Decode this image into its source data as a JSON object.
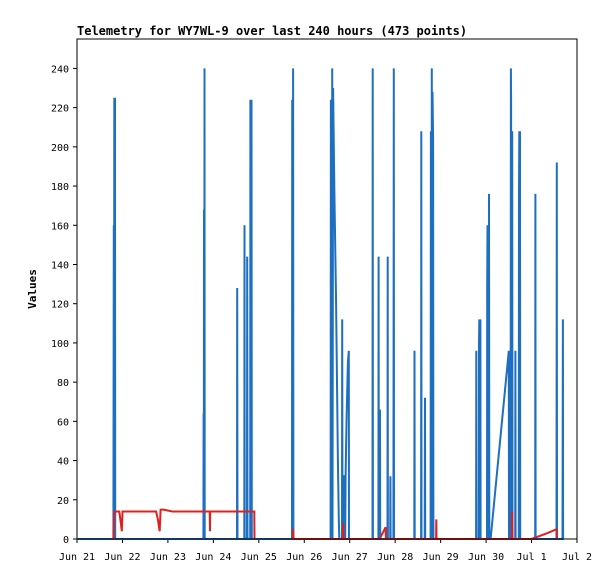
{
  "chart_data": {
    "type": "line",
    "title": "Telemetry for WY7WL-9 over last 240 hours (473 points)",
    "xlabel": "",
    "ylabel": "Values",
    "ylim": [
      0,
      255
    ],
    "xlim": [
      "Jun 21",
      "Jul 2"
    ],
    "yticks": [
      0,
      20,
      40,
      60,
      80,
      100,
      120,
      140,
      160,
      180,
      200,
      220,
      240
    ],
    "xticks": [
      "Jun 21",
      "Jun 22",
      "Jun 23",
      "Jun 24",
      "Jun 25",
      "Jun 26",
      "Jun 27",
      "Jun 28",
      "Jun 29",
      "Jun 30",
      "Jul 1",
      "Jul 2"
    ],
    "grid": false,
    "legend": "none",
    "colors": {
      "blue": "#1f6fc0",
      "red": "#e02020",
      "black": "#000000"
    },
    "series": [
      {
        "color": "#1f6fc0",
        "points": [
          [
            0.0,
            0
          ],
          [
            0.8,
            0
          ],
          [
            0.81,
            160
          ],
          [
            0.815,
            0
          ],
          [
            0.82,
            225
          ],
          [
            0.825,
            0
          ],
          [
            0.835,
            225
          ],
          [
            0.84,
            0
          ],
          [
            1.0,
            0
          ],
          [
            2.78,
            0
          ],
          [
            2.785,
            64
          ],
          [
            2.79,
            0
          ],
          [
            2.795,
            168
          ],
          [
            2.8,
            0
          ],
          [
            2.805,
            240
          ],
          [
            2.81,
            0
          ],
          [
            3.0,
            0
          ],
          [
            3.52,
            0
          ],
          [
            3.525,
            128
          ],
          [
            3.53,
            0
          ],
          [
            3.68,
            0
          ],
          [
            3.685,
            160
          ],
          [
            3.69,
            0
          ],
          [
            3.74,
            0
          ],
          [
            3.745,
            144
          ],
          [
            3.75,
            0
          ],
          [
            3.81,
            0
          ],
          [
            3.815,
            224
          ],
          [
            3.82,
            0
          ],
          [
            3.835,
            0
          ],
          [
            3.84,
            224
          ],
          [
            3.845,
            0
          ],
          [
            4.0,
            0
          ],
          [
            4.73,
            0
          ],
          [
            4.735,
            224
          ],
          [
            4.74,
            0
          ],
          [
            4.75,
            0
          ],
          [
            4.755,
            240
          ],
          [
            4.76,
            0
          ],
          [
            5.0,
            0
          ],
          [
            5.58,
            0
          ],
          [
            5.585,
            224
          ],
          [
            5.59,
            0
          ],
          [
            5.61,
            0
          ],
          [
            5.615,
            240
          ],
          [
            5.62,
            0
          ],
          [
            5.635,
            230
          ],
          [
            5.66,
            180
          ],
          [
            5.68,
            150
          ],
          [
            5.7,
            120
          ],
          [
            5.72,
            80
          ],
          [
            5.74,
            40
          ],
          [
            5.76,
            10
          ],
          [
            5.77,
            0
          ],
          [
            5.83,
            0
          ],
          [
            5.835,
            112
          ],
          [
            5.84,
            0
          ],
          [
            5.85,
            0
          ],
          [
            5.855,
            32
          ],
          [
            5.89,
            32
          ],
          [
            5.895,
            0
          ],
          [
            5.9,
            0
          ],
          [
            5.91,
            32
          ],
          [
            5.93,
            60
          ],
          [
            5.96,
            90
          ],
          [
            5.98,
            96
          ],
          [
            5.985,
            0
          ],
          [
            6.0,
            0
          ],
          [
            6.5,
            0
          ],
          [
            6.505,
            240
          ],
          [
            6.51,
            0
          ],
          [
            6.63,
            0
          ],
          [
            6.635,
            144
          ],
          [
            6.64,
            0
          ],
          [
            6.66,
            0
          ],
          [
            6.665,
            66
          ],
          [
            6.67,
            0
          ],
          [
            6.83,
            0
          ],
          [
            6.835,
            144
          ],
          [
            6.84,
            0
          ],
          [
            6.89,
            0
          ],
          [
            6.895,
            32
          ],
          [
            6.9,
            0
          ],
          [
            6.96,
            0
          ],
          [
            6.965,
            112
          ],
          [
            6.97,
            240
          ],
          [
            6.975,
            0
          ],
          [
            7.0,
            0
          ],
          [
            7.42,
            0
          ],
          [
            7.425,
            96
          ],
          [
            7.43,
            0
          ],
          [
            7.57,
            0
          ],
          [
            7.575,
            208
          ],
          [
            7.58,
            0
          ],
          [
            7.65,
            0
          ],
          [
            7.655,
            72
          ],
          [
            7.66,
            0
          ],
          [
            7.78,
            0
          ],
          [
            7.785,
            208
          ],
          [
            7.79,
            0
          ],
          [
            7.8,
            0
          ],
          [
            7.805,
            240
          ],
          [
            7.81,
            0
          ],
          [
            7.82,
            228
          ],
          [
            7.835,
            204
          ],
          [
            7.84,
            0
          ],
          [
            8.0,
            0
          ],
          [
            8.78,
            0
          ],
          [
            8.785,
            96
          ],
          [
            8.79,
            0
          ],
          [
            8.84,
            0
          ],
          [
            8.845,
            100
          ],
          [
            8.85,
            112
          ],
          [
            8.855,
            0
          ],
          [
            8.87,
            0
          ],
          [
            8.875,
            112
          ],
          [
            8.88,
            0
          ],
          [
            9.0,
            0
          ],
          [
            9.02,
            0
          ],
          [
            9.025,
            128
          ],
          [
            9.03,
            160
          ],
          [
            9.035,
            0
          ],
          [
            9.06,
            0
          ],
          [
            9.065,
            176
          ],
          [
            9.07,
            0
          ],
          [
            9.1,
            0
          ],
          [
            9.5,
            96
          ],
          [
            9.505,
            0
          ],
          [
            9.54,
            0
          ],
          [
            9.545,
            240
          ],
          [
            9.55,
            224
          ],
          [
            9.555,
            0
          ],
          [
            9.57,
            0
          ],
          [
            9.575,
            208
          ],
          [
            9.58,
            0
          ],
          [
            9.64,
            0
          ],
          [
            9.645,
            96
          ],
          [
            9.65,
            0
          ],
          [
            9.72,
            0
          ],
          [
            9.725,
            176
          ],
          [
            9.73,
            208
          ],
          [
            9.735,
            0
          ],
          [
            9.74,
            0
          ],
          [
            9.745,
            208
          ],
          [
            9.75,
            0
          ],
          [
            10.0,
            0
          ],
          [
            10.08,
            0
          ],
          [
            10.085,
            176
          ],
          [
            10.09,
            0
          ],
          [
            10.55,
            0
          ],
          [
            10.555,
            192
          ],
          [
            10.56,
            0
          ],
          [
            10.68,
            0
          ],
          [
            10.685,
            56
          ],
          [
            10.69,
            112
          ],
          [
            10.695,
            0
          ]
        ]
      },
      {
        "color": "#e02020",
        "points": [
          [
            0.8,
            0
          ],
          [
            0.82,
            14
          ],
          [
            0.93,
            14
          ],
          [
            0.97,
            7
          ],
          [
            0.985,
            4
          ],
          [
            1.0,
            14
          ],
          [
            1.05,
            14
          ],
          [
            1.3,
            14
          ],
          [
            1.55,
            14
          ],
          [
            1.74,
            14
          ],
          [
            1.78,
            10
          ],
          [
            1.805,
            6
          ],
          [
            1.82,
            4
          ],
          [
            1.84,
            15
          ],
          [
            1.9,
            15
          ],
          [
            2.1,
            14
          ],
          [
            2.45,
            14
          ],
          [
            2.8,
            14
          ],
          [
            2.82,
            14
          ],
          [
            2.92,
            14
          ],
          [
            2.925,
            4
          ],
          [
            2.93,
            14
          ],
          [
            3.2,
            14
          ],
          [
            3.5,
            14
          ],
          [
            3.9,
            14
          ],
          [
            3.905,
            0
          ]
        ]
      },
      {
        "color": "#e02020",
        "points": [
          [
            4.75,
            0
          ],
          [
            4.755,
            5
          ],
          [
            4.76,
            0
          ],
          [
            5.85,
            0
          ],
          [
            5.855,
            8
          ],
          [
            5.86,
            0
          ],
          [
            6.66,
            0
          ],
          [
            6.79,
            6
          ],
          [
            6.795,
            0
          ],
          [
            7.9,
            0
          ],
          [
            7.905,
            10
          ],
          [
            7.91,
            0
          ],
          [
            9.57,
            0
          ],
          [
            9.575,
            14
          ],
          [
            9.58,
            0
          ],
          [
            10.0,
            0
          ],
          [
            10.35,
            3
          ],
          [
            10.55,
            5
          ],
          [
            10.555,
            0
          ]
        ]
      }
    ]
  }
}
